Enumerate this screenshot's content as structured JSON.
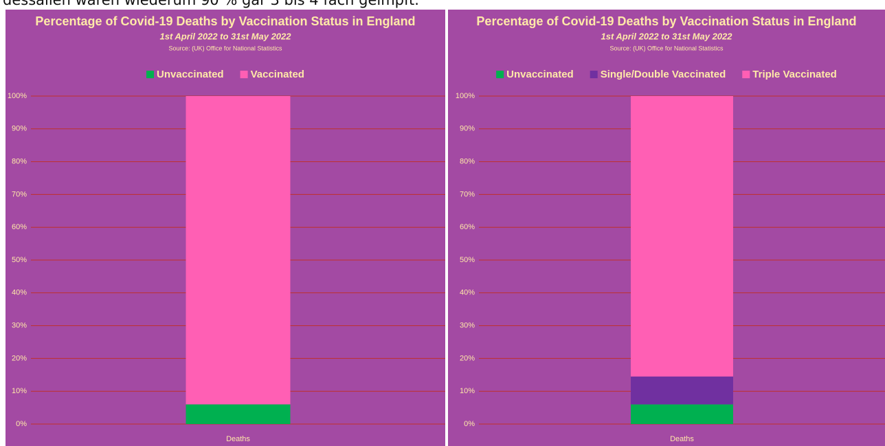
{
  "caption": "dessalien waren wiederum 90 % gar 3 bis 4 fach geimpft.",
  "chart_data": [
    {
      "type": "bar",
      "stacked": true,
      "title": "Percentage of Covid-19 Deaths by Vaccination Status in England",
      "subtitle": "1st April 2022 to 31st May 2022",
      "source": "Source: (UK) Office for National Statistics",
      "categories": [
        "Deaths"
      ],
      "series": [
        {
          "name": "Unvaccinated",
          "color": "#00b050",
          "values": [
            6
          ]
        },
        {
          "name": "Vaccinated",
          "color": "#ff5fb4",
          "values": [
            94
          ]
        }
      ],
      "ylim": [
        0,
        100
      ],
      "yticks": [
        {
          "value": 0,
          "label": "0%"
        },
        {
          "value": 10,
          "label": "10%"
        },
        {
          "value": 20,
          "label": "20%"
        },
        {
          "value": 30,
          "label": "30%"
        },
        {
          "value": 40,
          "label": "40%"
        },
        {
          "value": 50,
          "label": "50%"
        },
        {
          "value": 60,
          "label": "60%"
        },
        {
          "value": 70,
          "label": "70%"
        },
        {
          "value": 80,
          "label": "80%"
        },
        {
          "value": 90,
          "label": "90%"
        },
        {
          "value": 100,
          "label": "100%"
        }
      ],
      "grid": true,
      "legend": "top"
    },
    {
      "type": "bar",
      "stacked": true,
      "title": "Percentage of Covid-19 Deaths by Vaccination Status in England",
      "subtitle": "1st April 2022 to 31st May 2022",
      "source": "Source: (UK) Office for National Statistics",
      "categories": [
        "Deaths"
      ],
      "series": [
        {
          "name": "Unvaccinated",
          "color": "#00b050",
          "values": [
            6
          ]
        },
        {
          "name": "Single/Double Vaccinated",
          "color": "#7030a0",
          "values": [
            8.5
          ]
        },
        {
          "name": "Triple Vaccinated",
          "color": "#ff5fb4",
          "values": [
            85.5
          ]
        }
      ],
      "ylim": [
        0,
        100
      ],
      "yticks": [
        {
          "value": 0,
          "label": "0%"
        },
        {
          "value": 10,
          "label": "10%"
        },
        {
          "value": 20,
          "label": "20%"
        },
        {
          "value": 30,
          "label": "30%"
        },
        {
          "value": 40,
          "label": "40%"
        },
        {
          "value": 50,
          "label": "50%"
        },
        {
          "value": 60,
          "label": "60%"
        },
        {
          "value": 70,
          "label": "70%"
        },
        {
          "value": 80,
          "label": "80%"
        },
        {
          "value": 90,
          "label": "90%"
        },
        {
          "value": 100,
          "label": "100%"
        }
      ],
      "grid": true,
      "legend": "top"
    }
  ]
}
